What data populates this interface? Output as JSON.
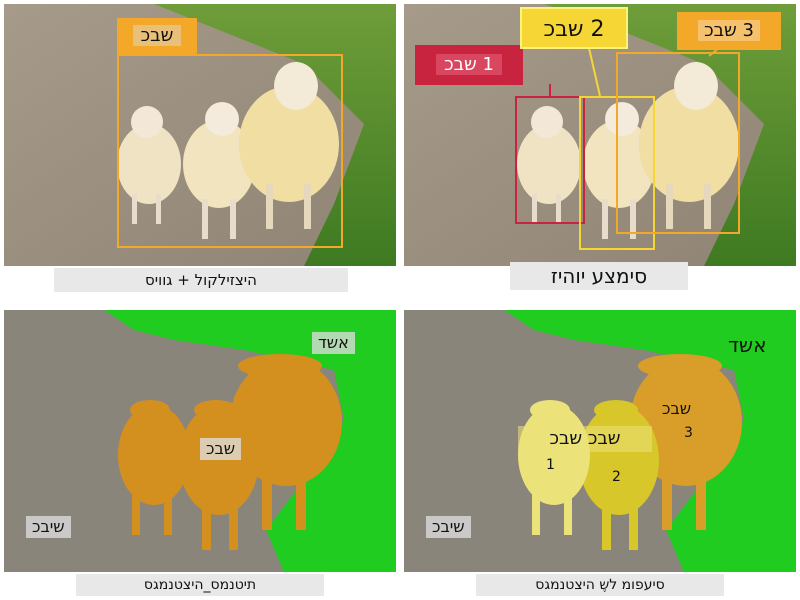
{
  "colors": {
    "yellow_box": "#f5d634",
    "orange_box": "#f4a82a",
    "red_box": "#c8243f",
    "grass": "#1fcc1f",
    "road": "#8a857a",
    "sheep_semantic": "#d4901e",
    "sheep_1": "#ece27a",
    "sheep_2": "#d7c72a",
    "sheep_3": "#d99d2a"
  },
  "panels": {
    "classification": {
      "caption": "היצזילקול + גוויס",
      "tag": "שבכ"
    },
    "detection": {
      "caption": "סימצע יוהיז",
      "tags": [
        "1 שבכ",
        "2 שבכ",
        "3 שבכ"
      ]
    },
    "semantic": {
      "caption": "תיטנמס_היצטנמגס",
      "labels": {
        "sky_or_grass": "אשד",
        "sheep": "שבכ",
        "road": "שיבכ"
      }
    },
    "instance": {
      "caption": "סיעפומ לשֶ היצטנמגס",
      "labels": {
        "grass": "אשד",
        "sheep_pair": "שבכ שבכ",
        "sheep_3": "שבכ",
        "road": "שיבכ",
        "num_1": "1",
        "num_2": "2",
        "num_3": "3"
      }
    }
  }
}
